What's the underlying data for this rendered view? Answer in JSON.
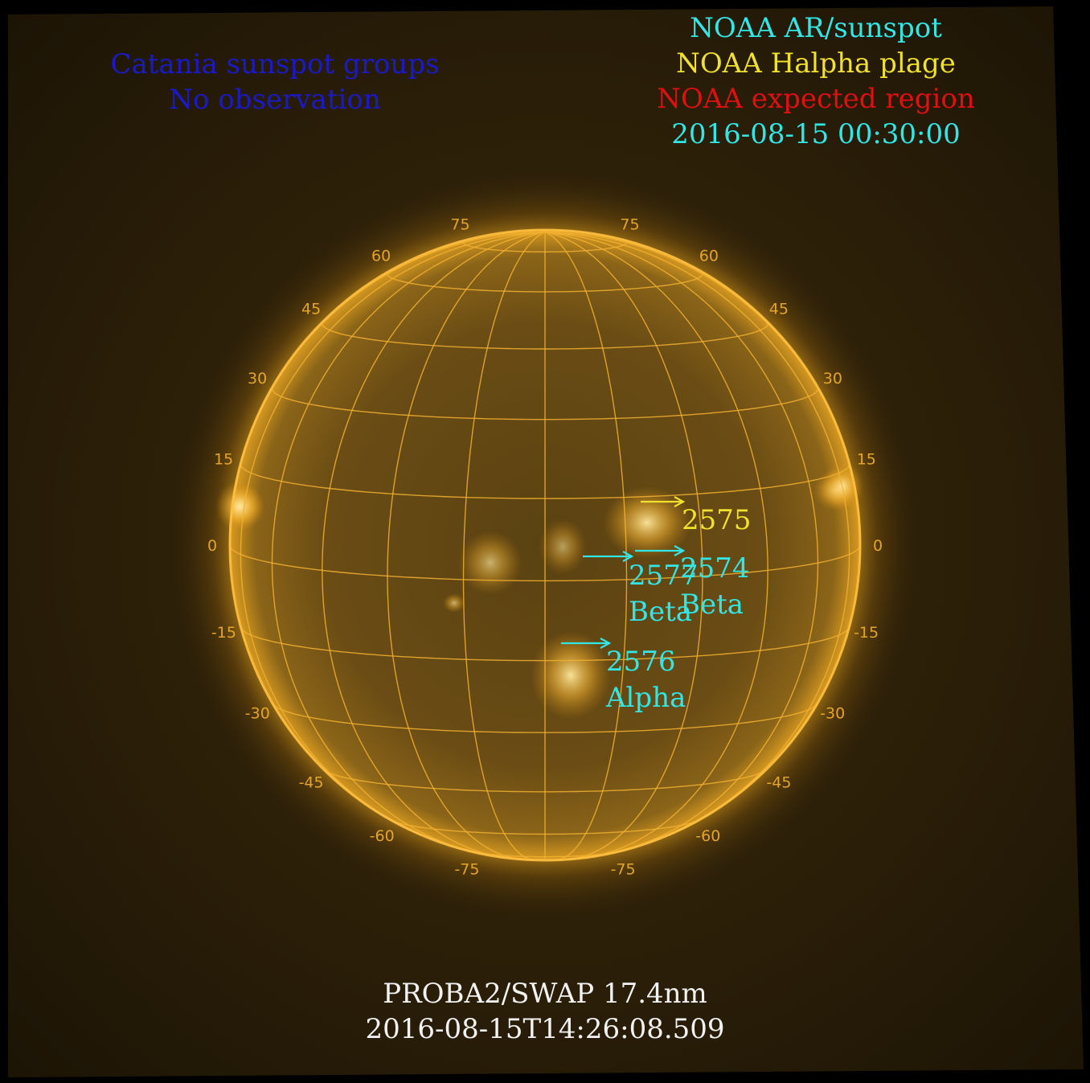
{
  "header_left": {
    "line1": "Catania sunspot groups",
    "line2": "No observation",
    "color": "#1a1acc"
  },
  "legend_right": {
    "ar_sunspot": "NOAA AR/sunspot",
    "halpha_plage": "NOAA Halpha plage",
    "expected_region": "NOAA expected region",
    "timestamp": "2016-08-15 00:30:00",
    "colors": {
      "ar_sunspot": "#33e6e6",
      "halpha_plage": "#f0e030",
      "expected_region": "#e01010",
      "timestamp": "#33e6e6"
    }
  },
  "footer": {
    "instrument": "PROBA2/SWAP 17.4nm",
    "observation_time": "2016-08-15T14:26:08.509"
  },
  "grid_labels": {
    "latitude_left": [
      "75",
      "60",
      "45",
      "30",
      "15",
      "0",
      "-15",
      "-30",
      "-45",
      "-60",
      "-75"
    ],
    "latitude_right": [
      "75",
      "60",
      "45",
      "30",
      "15",
      "0",
      "-15",
      "-30",
      "-45",
      "-60",
      "-75"
    ]
  },
  "regions": [
    {
      "number": "2575",
      "class": "",
      "color": "#f0e030"
    },
    {
      "number": "2574",
      "class": "Beta",
      "color": "#33e6e6"
    },
    {
      "number": "2577",
      "class": "Beta",
      "color": "#33e6e6"
    },
    {
      "number": "2576",
      "class": "Alpha",
      "color": "#33e6e6"
    }
  ],
  "colors": {
    "background": "#2a1e08",
    "grid": "#f2b030",
    "corona": "#e8a010"
  }
}
